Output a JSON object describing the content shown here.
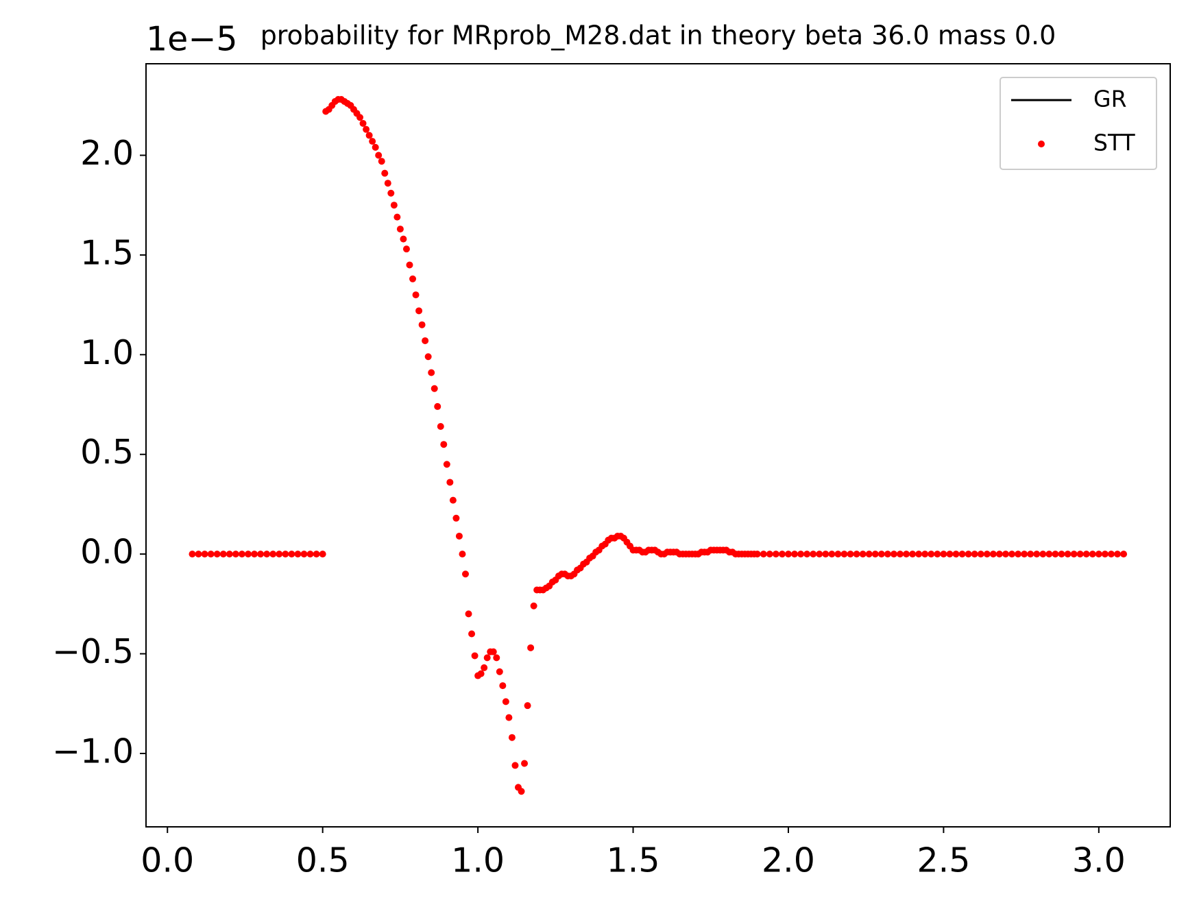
{
  "chart_data": {
    "type": "scatter",
    "title": "probability for MRprob_M28.dat in theory beta 36.0 mass 0.0",
    "y_offset_text": "1e−5",
    "xlim": [
      -0.069,
      3.23
    ],
    "ylim": [
      -1.368,
      2.459
    ],
    "xticks": [
      {
        "value": 0,
        "label": "0.0"
      },
      {
        "value": 0.5,
        "label": "0.5"
      },
      {
        "value": 1,
        "label": "1.0"
      },
      {
        "value": 1.5,
        "label": "1.5"
      },
      {
        "value": 2,
        "label": "2.0"
      },
      {
        "value": 2.5,
        "label": "2.5"
      },
      {
        "value": 3,
        "label": "3.0"
      }
    ],
    "yticks": [
      {
        "value": -1,
        "label": "−1.0"
      },
      {
        "value": -0.5,
        "label": "−0.5"
      },
      {
        "value": 0,
        "label": "0.0"
      },
      {
        "value": 0.5,
        "label": "0.5"
      },
      {
        "value": 1,
        "label": "1.0"
      },
      {
        "value": 1.5,
        "label": "1.5"
      },
      {
        "value": 2,
        "label": "2.0"
      }
    ],
    "legend": "upper right",
    "x": [
      0.08,
      0.1,
      0.12,
      0.14,
      0.16,
      0.18,
      0.2,
      0.22,
      0.24,
      0.26,
      0.28,
      0.3,
      0.32,
      0.34,
      0.36,
      0.38,
      0.4,
      0.42,
      0.44,
      0.46,
      0.48,
      0.5,
      0.51,
      0.52,
      0.53,
      0.54,
      0.55,
      0.56,
      0.57,
      0.58,
      0.59,
      0.6,
      0.61,
      0.62,
      0.63,
      0.64,
      0.65,
      0.66,
      0.67,
      0.68,
      0.69,
      0.7,
      0.71,
      0.72,
      0.73,
      0.74,
      0.75,
      0.76,
      0.77,
      0.78,
      0.79,
      0.8,
      0.81,
      0.82,
      0.83,
      0.84,
      0.85,
      0.86,
      0.87,
      0.88,
      0.89,
      0.9,
      0.91,
      0.92,
      0.93,
      0.94,
      0.95,
      0.96,
      0.97,
      0.98,
      0.99,
      1.0,
      1.01,
      1.02,
      1.03,
      1.04,
      1.05,
      1.06,
      1.07,
      1.08,
      1.09,
      1.1,
      1.11,
      1.12,
      1.13,
      1.14,
      1.15,
      1.16,
      1.17,
      1.18,
      1.19,
      1.2,
      1.21,
      1.22,
      1.23,
      1.24,
      1.25,
      1.26,
      1.27,
      1.28,
      1.29,
      1.3,
      1.31,
      1.32,
      1.33,
      1.34,
      1.35,
      1.36,
      1.37,
      1.38,
      1.39,
      1.4,
      1.41,
      1.42,
      1.43,
      1.44,
      1.45,
      1.46,
      1.47,
      1.48,
      1.49,
      1.5,
      1.51,
      1.52,
      1.53,
      1.54,
      1.55,
      1.56,
      1.57,
      1.58,
      1.59,
      1.6,
      1.61,
      1.62,
      1.63,
      1.64,
      1.65,
      1.66,
      1.67,
      1.68,
      1.69,
      1.7,
      1.71,
      1.72,
      1.73,
      1.74,
      1.75,
      1.76,
      1.77,
      1.78,
      1.79,
      1.8,
      1.81,
      1.82,
      1.83,
      1.84,
      1.85,
      1.86,
      1.87,
      1.88,
      1.89,
      1.9,
      1.92,
      1.94,
      1.96,
      1.98,
      2.0,
      2.02,
      2.04,
      2.06,
      2.08,
      2.1,
      2.12,
      2.14,
      2.16,
      2.18,
      2.2,
      2.22,
      2.24,
      2.26,
      2.28,
      2.3,
      2.32,
      2.34,
      2.36,
      2.38,
      2.4,
      2.42,
      2.44,
      2.46,
      2.48,
      2.5,
      2.52,
      2.54,
      2.56,
      2.58,
      2.6,
      2.62,
      2.64,
      2.66,
      2.68,
      2.7,
      2.72,
      2.74,
      2.76,
      2.78,
      2.8,
      2.82,
      2.84,
      2.86,
      2.88,
      2.9,
      2.92,
      2.94,
      2.96,
      2.98,
      3.0,
      3.02,
      3.04,
      3.06,
      3.08
    ],
    "series": [
      {
        "name": "GR",
        "color": "#000000",
        "marker": "line",
        "values": [
          null,
          null,
          null,
          null,
          null,
          null,
          null,
          null,
          null,
          null,
          null,
          null,
          null,
          null,
          null,
          null,
          null,
          null,
          null,
          null,
          null,
          null,
          null,
          null,
          null,
          null,
          null,
          null,
          null,
          null,
          null,
          null,
          null,
          null,
          null,
          null,
          null,
          null,
          null,
          null,
          null,
          null,
          null,
          null,
          null,
          null,
          null,
          null,
          null,
          null,
          null,
          null,
          null,
          null,
          null,
          null,
          null,
          null,
          null,
          null,
          null,
          null,
          null,
          null,
          null,
          null,
          null,
          null,
          null,
          null,
          null,
          null,
          null,
          null,
          null,
          null,
          null,
          null,
          null,
          null,
          null,
          null,
          null,
          null,
          null,
          null,
          null,
          null,
          null,
          null,
          null,
          null,
          null,
          null,
          null,
          null,
          null,
          null,
          null,
          null,
          null,
          null,
          null,
          null,
          null,
          null,
          null,
          null,
          null,
          null,
          null,
          null,
          null,
          null,
          null,
          null,
          null,
          null,
          null,
          null,
          null,
          null,
          null,
          null,
          null,
          null,
          null,
          null,
          null,
          null,
          null,
          null,
          null,
          null,
          null,
          null,
          null,
          null,
          null,
          null,
          null,
          null,
          null,
          null,
          null,
          null,
          null,
          null,
          null,
          null,
          null,
          null,
          null,
          null,
          null,
          null,
          null,
          null,
          null,
          null,
          null,
          null,
          null,
          null,
          null,
          null,
          null,
          null,
          null,
          null,
          null,
          null,
          null,
          null,
          null,
          null,
          null,
          null,
          null,
          null,
          null,
          null,
          null,
          null,
          null,
          null,
          null,
          null,
          null,
          null,
          null,
          null,
          null,
          null,
          null,
          null,
          null,
          null,
          null,
          null,
          null
        ]
      },
      {
        "name": "STT",
        "color": "#ff0000",
        "marker": "dot",
        "values": [
          0,
          0,
          0,
          0,
          0,
          0,
          0,
          0,
          0,
          0,
          0,
          0,
          0,
          0,
          0,
          0,
          0,
          0,
          0,
          0,
          0,
          0,
          2.22,
          2.23,
          2.25,
          2.27,
          2.28,
          2.28,
          2.27,
          2.26,
          2.25,
          2.23,
          2.21,
          2.19,
          2.16,
          2.13,
          2.1,
          2.07,
          2.04,
          2.0,
          1.97,
          1.91,
          1.86,
          1.81,
          1.75,
          1.69,
          1.63,
          1.58,
          1.53,
          1.45,
          1.38,
          1.3,
          1.22,
          1.15,
          1.07,
          0.99,
          0.91,
          0.83,
          0.74,
          0.64,
          0.55,
          0.45,
          0.36,
          0.27,
          0.18,
          0.09,
          0.0,
          -0.1,
          -0.3,
          -0.4,
          -0.51,
          -0.61,
          -0.6,
          -0.57,
          -0.52,
          -0.49,
          -0.49,
          -0.52,
          -0.59,
          -0.66,
          -0.74,
          -0.82,
          -0.92,
          -1.06,
          -1.17,
          -1.19,
          -1.05,
          -0.76,
          -0.47,
          -0.26,
          -0.18,
          -0.18,
          -0.18,
          -0.17,
          -0.16,
          -0.14,
          -0.13,
          -0.11,
          -0.1,
          -0.1,
          -0.11,
          -0.11,
          -0.1,
          -0.08,
          -0.07,
          -0.05,
          -0.04,
          -0.02,
          -0.01,
          0.01,
          0.02,
          0.04,
          0.05,
          0.07,
          0.08,
          0.08,
          0.09,
          0.09,
          0.08,
          0.06,
          0.04,
          0.02,
          0.02,
          0.02,
          0.01,
          0.01,
          0.02,
          0.02,
          0.02,
          0.01,
          0,
          0,
          0.01,
          0.01,
          0.01,
          0.01,
          0,
          0,
          0,
          0,
          0,
          0,
          0,
          0.01,
          0.01,
          0.01,
          0.02,
          0.02,
          0.02,
          0.02,
          0.02,
          0.02,
          0.01,
          0.01,
          0,
          0,
          0,
          0,
          0,
          0,
          0,
          0,
          0,
          0,
          0,
          0,
          0,
          0,
          0,
          0,
          0,
          0,
          0,
          0,
          0,
          0,
          0,
          0,
          0,
          0,
          0,
          0,
          0,
          0,
          0,
          0,
          0,
          0,
          0,
          0,
          0,
          0,
          0,
          0,
          0,
          0,
          0,
          0,
          0,
          0,
          0,
          0,
          0,
          0,
          0,
          0,
          0,
          0,
          0,
          0,
          0,
          0,
          0,
          0,
          0,
          0,
          0,
          0,
          0,
          0,
          0
        ]
      }
    ]
  }
}
